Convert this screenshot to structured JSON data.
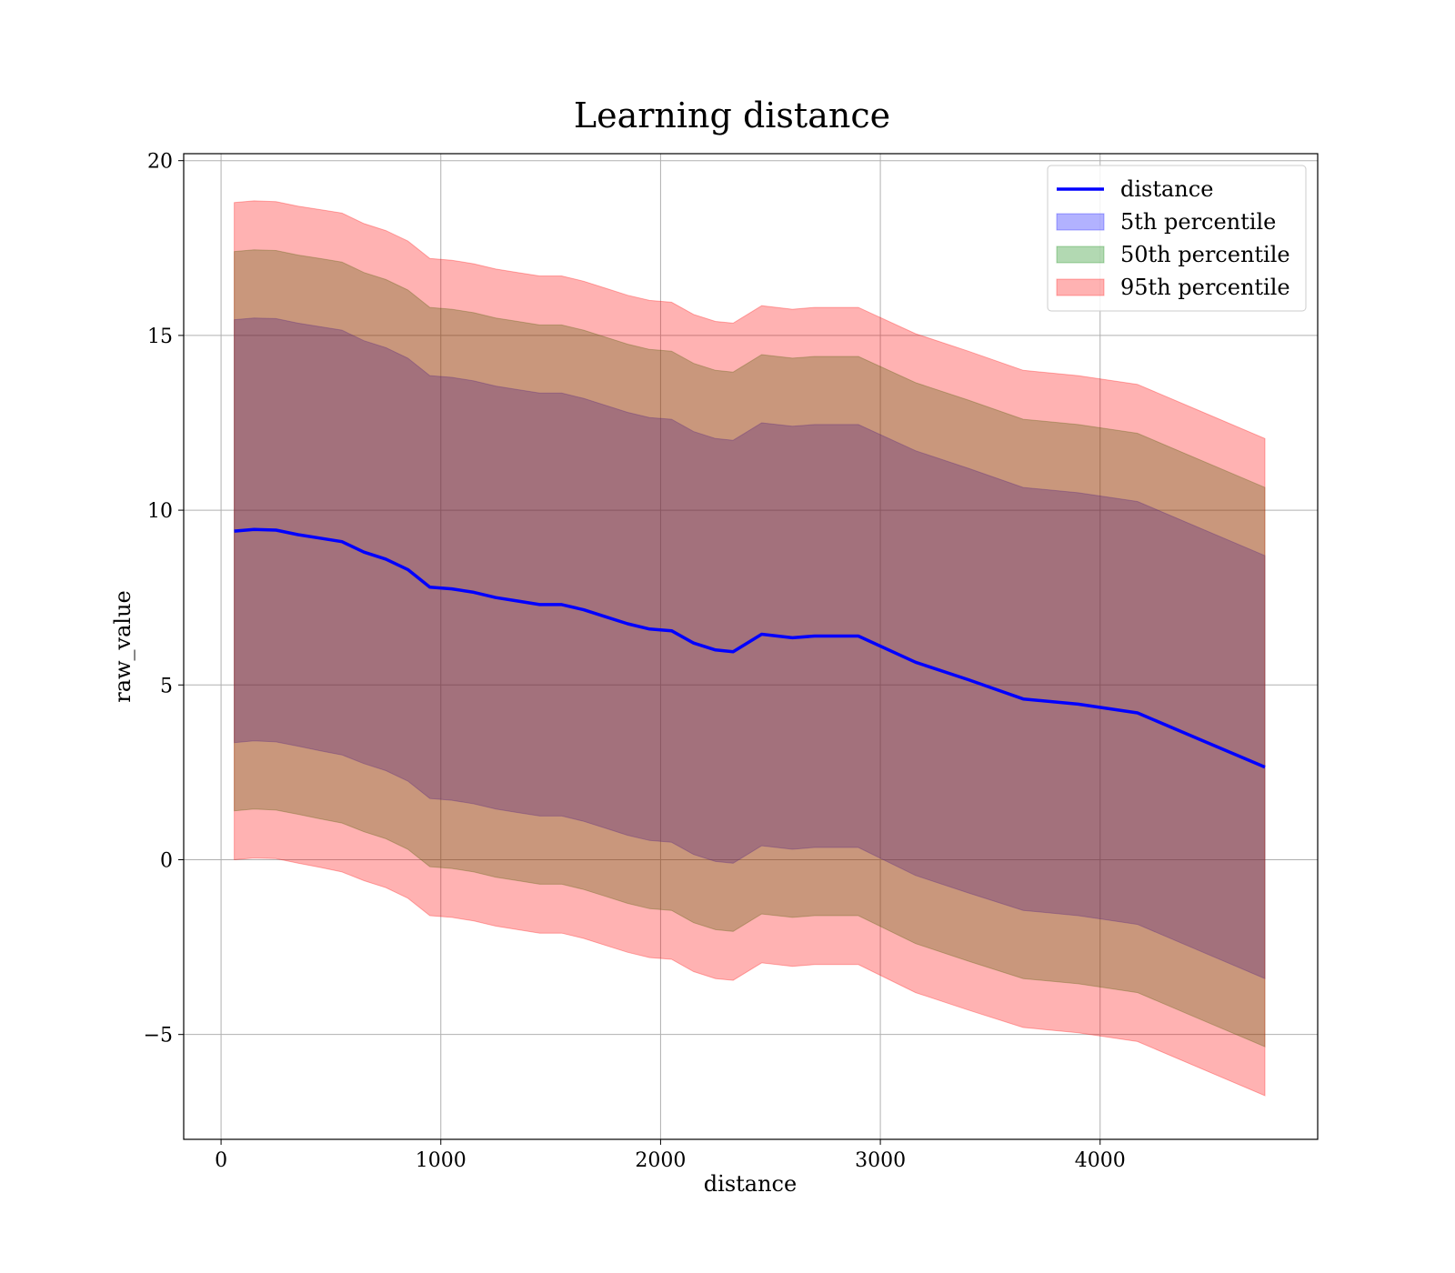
{
  "chart_data": {
    "type": "area",
    "title": "Learning distance",
    "xlabel": "distance",
    "ylabel": "raw_value",
    "xlim": [
      -170,
      4990
    ],
    "ylim": [
      -8,
      20.2
    ],
    "xticks": [
      {
        "value": 0,
        "label": "0"
      },
      {
        "value": 1000,
        "label": "1000"
      },
      {
        "value": 2000,
        "label": "2000"
      },
      {
        "value": 3000,
        "label": "3000"
      },
      {
        "value": 4000,
        "label": "4000"
      }
    ],
    "yticks": [
      {
        "value": -5,
        "label": "−5"
      },
      {
        "value": 0,
        "label": "0"
      },
      {
        "value": 5,
        "label": "5"
      },
      {
        "value": 10,
        "label": "10"
      },
      {
        "value": 15,
        "label": "15"
      },
      {
        "value": 20,
        "label": "20"
      }
    ],
    "grid": true,
    "legend_position": "top-right",
    "x": [
      60,
      150,
      250,
      350,
      450,
      550,
      650,
      750,
      850,
      950,
      1050,
      1150,
      1250,
      1350,
      1450,
      1550,
      1650,
      1750,
      1850,
      1950,
      2050,
      2150,
      2250,
      2330,
      2460,
      2600,
      2700,
      2900,
      3160,
      3400,
      3650,
      3900,
      4170,
      4450,
      4750
    ],
    "series": [
      {
        "name": "distance",
        "kind": "line",
        "color": "#0000ff",
        "values": [
          9.4,
          9.45,
          9.43,
          9.3,
          9.2,
          9.1,
          8.8,
          8.6,
          8.3,
          7.8,
          7.75,
          7.65,
          7.5,
          7.4,
          7.3,
          7.3,
          7.15,
          6.95,
          6.75,
          6.6,
          6.55,
          6.2,
          6.0,
          5.95,
          6.45,
          6.35,
          6.4,
          6.4,
          5.65,
          5.15,
          4.6,
          4.45,
          4.2,
          3.45,
          2.65
        ]
      },
      {
        "name": "5th percentile",
        "kind": "band",
        "color": "#0000ff",
        "lower": [
          3.35,
          3.4,
          3.37,
          3.25,
          3.12,
          3.0,
          2.75,
          2.55,
          2.25,
          1.75,
          1.7,
          1.6,
          1.45,
          1.35,
          1.25,
          1.25,
          1.1,
          0.9,
          0.7,
          0.55,
          0.5,
          0.15,
          -0.05,
          -0.1,
          0.4,
          0.3,
          0.35,
          0.35,
          -0.45,
          -0.95,
          -1.45,
          -1.6,
          -1.85,
          -2.6,
          -3.4
        ],
        "upper": [
          15.45,
          15.5,
          15.48,
          15.35,
          15.25,
          15.15,
          14.85,
          14.65,
          14.35,
          13.85,
          13.8,
          13.7,
          13.55,
          13.45,
          13.35,
          13.35,
          13.2,
          13.0,
          12.8,
          12.65,
          12.6,
          12.25,
          12.05,
          12.0,
          12.5,
          12.4,
          12.45,
          12.45,
          11.7,
          11.2,
          10.65,
          10.5,
          10.25,
          9.5,
          8.7
        ]
      },
      {
        "name": "50th percentile",
        "kind": "band",
        "color": "#008000",
        "lower": [
          1.4,
          1.45,
          1.42,
          1.3,
          1.17,
          1.05,
          0.8,
          0.6,
          0.3,
          -0.2,
          -0.25,
          -0.35,
          -0.5,
          -0.6,
          -0.7,
          -0.7,
          -0.85,
          -1.05,
          -1.25,
          -1.4,
          -1.45,
          -1.8,
          -2.0,
          -2.05,
          -1.55,
          -1.65,
          -1.6,
          -1.6,
          -2.4,
          -2.9,
          -3.4,
          -3.55,
          -3.8,
          -4.55,
          -5.35
        ],
        "upper": [
          17.4,
          17.45,
          17.43,
          17.3,
          17.2,
          17.1,
          16.8,
          16.6,
          16.3,
          15.8,
          15.75,
          15.65,
          15.5,
          15.4,
          15.3,
          15.3,
          15.15,
          14.95,
          14.75,
          14.6,
          14.55,
          14.2,
          14.0,
          13.95,
          14.45,
          14.35,
          14.4,
          14.4,
          13.65,
          13.15,
          12.6,
          12.45,
          12.2,
          11.45,
          10.65
        ]
      },
      {
        "name": "95th percentile",
        "kind": "band",
        "color": "#ff0000",
        "lower": [
          0.0,
          0.05,
          0.03,
          -0.1,
          -0.22,
          -0.35,
          -0.6,
          -0.8,
          -1.1,
          -1.6,
          -1.65,
          -1.75,
          -1.9,
          -2.0,
          -2.1,
          -2.1,
          -2.25,
          -2.45,
          -2.65,
          -2.8,
          -2.85,
          -3.2,
          -3.4,
          -3.45,
          -2.95,
          -3.05,
          -3.0,
          -3.0,
          -3.8,
          -4.3,
          -4.8,
          -4.95,
          -5.2,
          -5.95,
          -6.75
        ],
        "upper": [
          18.8,
          18.85,
          18.83,
          18.7,
          18.6,
          18.5,
          18.2,
          18.0,
          17.7,
          17.2,
          17.15,
          17.05,
          16.9,
          16.8,
          16.7,
          16.7,
          16.55,
          16.35,
          16.15,
          16.0,
          15.95,
          15.6,
          15.4,
          15.35,
          15.85,
          15.75,
          15.8,
          15.8,
          15.05,
          14.55,
          14.0,
          13.85,
          13.6,
          12.85,
          12.05
        ]
      }
    ]
  }
}
